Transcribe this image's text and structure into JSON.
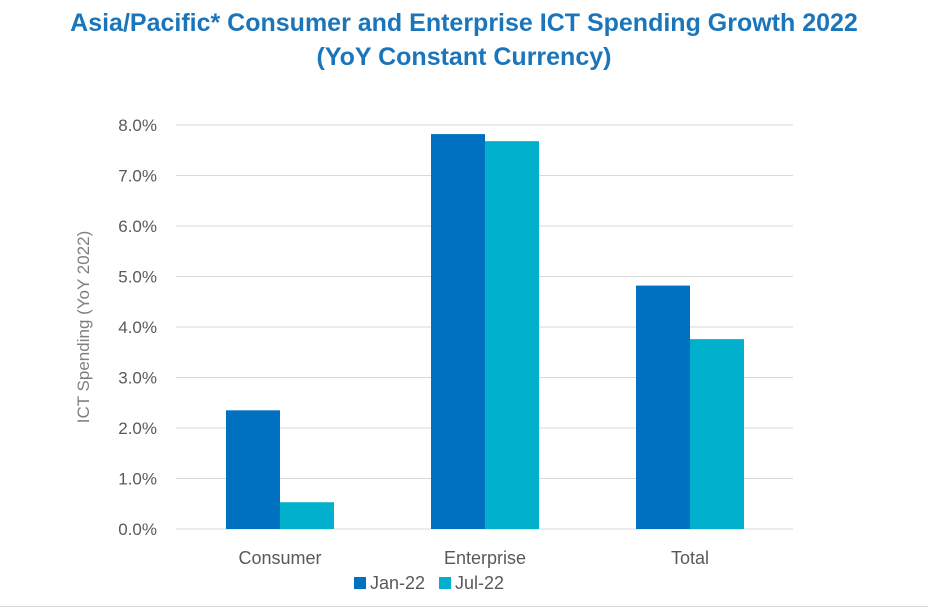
{
  "chart_data": {
    "type": "bar",
    "title": "Asia/Pacific* Consumer and Enterprise ICT Spending Growth 2022",
    "subtitle": "(YoY Constant Currency)",
    "xlabel": "",
    "ylabel": "ICT Spending (YoY 2022)",
    "categories": [
      "Consumer",
      "Enterprise",
      "Total"
    ],
    "series": [
      {
        "name": "Jan-22",
        "color": "#0070c0",
        "values": [
          2.35,
          7.82,
          4.82
        ]
      },
      {
        "name": "Jul-22",
        "color": "#00b0cc",
        "values": [
          0.53,
          7.68,
          3.76
        ]
      }
    ],
    "ylim": [
      0,
      8
    ],
    "yticks": [
      0,
      1,
      2,
      3,
      4,
      5,
      6,
      7,
      8
    ],
    "ytick_labels": [
      "0.0%",
      "1.0%",
      "2.0%",
      "3.0%",
      "4.0%",
      "5.0%",
      "6.0%",
      "7.0%",
      "8.0%"
    ],
    "grid": true,
    "legend": "bottom-center"
  },
  "colors": {
    "title": "#1b75bb",
    "axis_text": "#595959",
    "gridline": "#d9d9d9"
  }
}
